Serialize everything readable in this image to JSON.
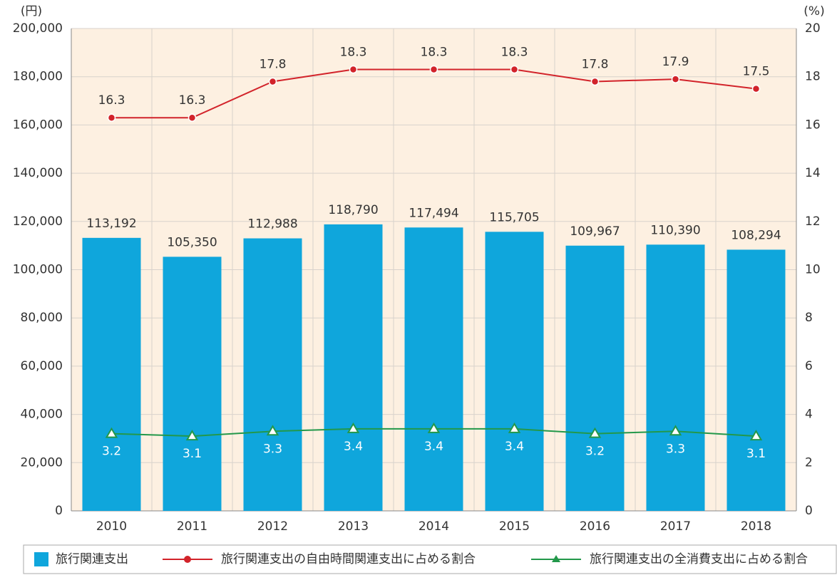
{
  "chart_data": {
    "type": "bar",
    "y_axis_label": "(円)",
    "y2_axis_label": "(%)",
    "categories": [
      "2010",
      "2011",
      "2012",
      "2013",
      "2014",
      "2015",
      "2016",
      "2017",
      "2018"
    ],
    "series": [
      {
        "name": "旅行関連支出",
        "type": "bar",
        "color": "#0fa6dc",
        "values": [
          113192,
          105350,
          112988,
          118790,
          117494,
          115705,
          109967,
          110390,
          108294
        ],
        "value_labels": [
          "113,192",
          "105,350",
          "112,988",
          "118,790",
          "117,494",
          "115,705",
          "109,967",
          "110,390",
          "108,294"
        ]
      },
      {
        "name": "旅行関連支出の自由時間関連支出に占める割合",
        "type": "line",
        "axis": "y2",
        "color": "#d2232a",
        "marker": "circle",
        "values": [
          16.3,
          16.3,
          17.8,
          18.3,
          18.3,
          18.3,
          17.8,
          17.9,
          17.5
        ]
      },
      {
        "name": "旅行関連支出の全消費支出に占める割合",
        "type": "line",
        "axis": "y2",
        "color": "#23984a",
        "marker": "triangle",
        "values": [
          3.2,
          3.1,
          3.3,
          3.4,
          3.4,
          3.4,
          3.2,
          3.3,
          3.1
        ]
      }
    ],
    "ylim": [
      0,
      200000
    ],
    "yticks": [
      {
        "value": 0,
        "label": "0"
      },
      {
        "value": 20000,
        "label": "20,000"
      },
      {
        "value": 40000,
        "label": "40,000"
      },
      {
        "value": 60000,
        "label": "60,000"
      },
      {
        "value": 80000,
        "label": "80,000"
      },
      {
        "value": 100000,
        "label": "100,000"
      },
      {
        "value": 120000,
        "label": "120,000"
      },
      {
        "value": 140000,
        "label": "140,000"
      },
      {
        "value": 160000,
        "label": "160,000"
      },
      {
        "value": 180000,
        "label": "180,000"
      },
      {
        "value": 200000,
        "label": "200,000"
      }
    ],
    "y2lim": [
      0,
      20
    ],
    "y2ticks": [
      0,
      2,
      4,
      6,
      8,
      10,
      12,
      14,
      16,
      18,
      20
    ],
    "grid": true,
    "legend": "bottom"
  }
}
